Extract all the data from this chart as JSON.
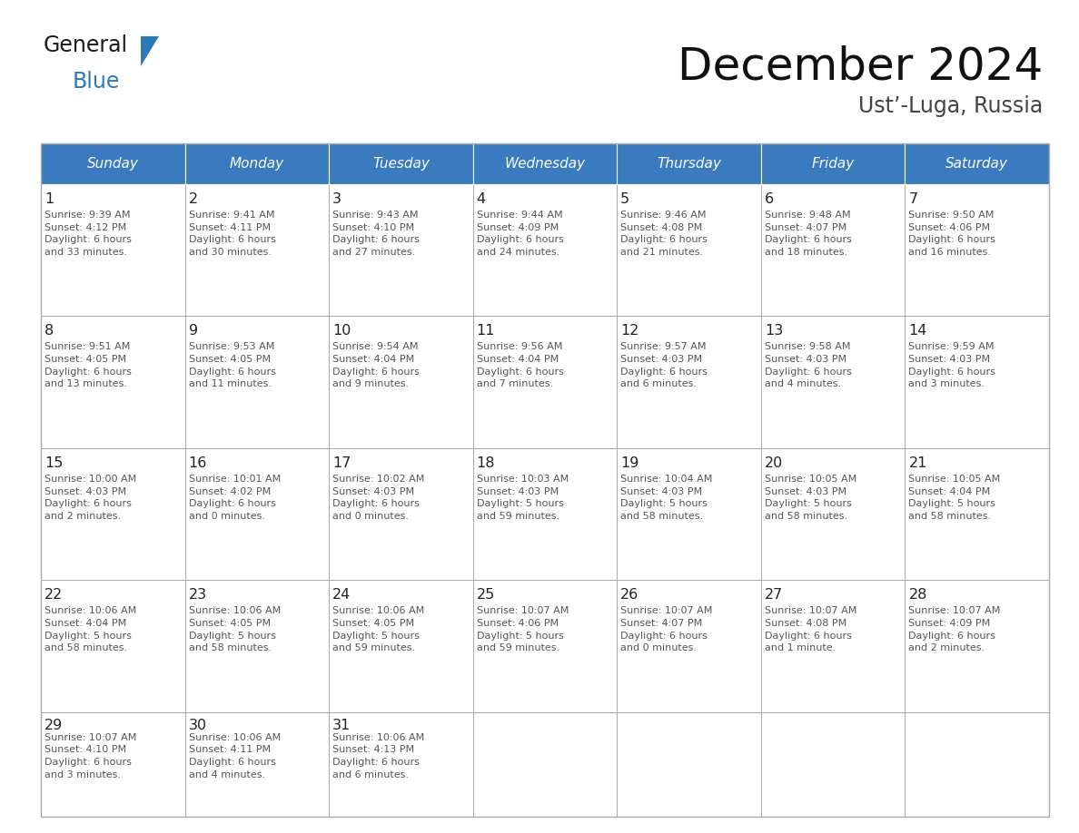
{
  "title": "December 2024",
  "subtitle": "Ust’-Luga, Russia",
  "header_color": "#3a7abf",
  "header_text_color": "#ffffff",
  "cell_bg_color": "#ffffff",
  "cell_border_color": "#aaaaaa",
  "day_num_color": "#222222",
  "content_text_color": "#555555",
  "days_of_week": [
    "Sunday",
    "Monday",
    "Tuesday",
    "Wednesday",
    "Thursday",
    "Friday",
    "Saturday"
  ],
  "weeks": [
    [
      {
        "day": 1,
        "sunrise": "9:39 AM",
        "sunset": "4:12 PM",
        "daylight": "6 hours\nand 33 minutes."
      },
      {
        "day": 2,
        "sunrise": "9:41 AM",
        "sunset": "4:11 PM",
        "daylight": "6 hours\nand 30 minutes."
      },
      {
        "day": 3,
        "sunrise": "9:43 AM",
        "sunset": "4:10 PM",
        "daylight": "6 hours\nand 27 minutes."
      },
      {
        "day": 4,
        "sunrise": "9:44 AM",
        "sunset": "4:09 PM",
        "daylight": "6 hours\nand 24 minutes."
      },
      {
        "day": 5,
        "sunrise": "9:46 AM",
        "sunset": "4:08 PM",
        "daylight": "6 hours\nand 21 minutes."
      },
      {
        "day": 6,
        "sunrise": "9:48 AM",
        "sunset": "4:07 PM",
        "daylight": "6 hours\nand 18 minutes."
      },
      {
        "day": 7,
        "sunrise": "9:50 AM",
        "sunset": "4:06 PM",
        "daylight": "6 hours\nand 16 minutes."
      }
    ],
    [
      {
        "day": 8,
        "sunrise": "9:51 AM",
        "sunset": "4:05 PM",
        "daylight": "6 hours\nand 13 minutes."
      },
      {
        "day": 9,
        "sunrise": "9:53 AM",
        "sunset": "4:05 PM",
        "daylight": "6 hours\nand 11 minutes."
      },
      {
        "day": 10,
        "sunrise": "9:54 AM",
        "sunset": "4:04 PM",
        "daylight": "6 hours\nand 9 minutes."
      },
      {
        "day": 11,
        "sunrise": "9:56 AM",
        "sunset": "4:04 PM",
        "daylight": "6 hours\nand 7 minutes."
      },
      {
        "day": 12,
        "sunrise": "9:57 AM",
        "sunset": "4:03 PM",
        "daylight": "6 hours\nand 6 minutes."
      },
      {
        "day": 13,
        "sunrise": "9:58 AM",
        "sunset": "4:03 PM",
        "daylight": "6 hours\nand 4 minutes."
      },
      {
        "day": 14,
        "sunrise": "9:59 AM",
        "sunset": "4:03 PM",
        "daylight": "6 hours\nand 3 minutes."
      }
    ],
    [
      {
        "day": 15,
        "sunrise": "10:00 AM",
        "sunset": "4:03 PM",
        "daylight": "6 hours\nand 2 minutes."
      },
      {
        "day": 16,
        "sunrise": "10:01 AM",
        "sunset": "4:02 PM",
        "daylight": "6 hours\nand 0 minutes."
      },
      {
        "day": 17,
        "sunrise": "10:02 AM",
        "sunset": "4:03 PM",
        "daylight": "6 hours\nand 0 minutes."
      },
      {
        "day": 18,
        "sunrise": "10:03 AM",
        "sunset": "4:03 PM",
        "daylight": "5 hours\nand 59 minutes."
      },
      {
        "day": 19,
        "sunrise": "10:04 AM",
        "sunset": "4:03 PM",
        "daylight": "5 hours\nand 58 minutes."
      },
      {
        "day": 20,
        "sunrise": "10:05 AM",
        "sunset": "4:03 PM",
        "daylight": "5 hours\nand 58 minutes."
      },
      {
        "day": 21,
        "sunrise": "10:05 AM",
        "sunset": "4:04 PM",
        "daylight": "5 hours\nand 58 minutes."
      }
    ],
    [
      {
        "day": 22,
        "sunrise": "10:06 AM",
        "sunset": "4:04 PM",
        "daylight": "5 hours\nand 58 minutes."
      },
      {
        "day": 23,
        "sunrise": "10:06 AM",
        "sunset": "4:05 PM",
        "daylight": "5 hours\nand 58 minutes."
      },
      {
        "day": 24,
        "sunrise": "10:06 AM",
        "sunset": "4:05 PM",
        "daylight": "5 hours\nand 59 minutes."
      },
      {
        "day": 25,
        "sunrise": "10:07 AM",
        "sunset": "4:06 PM",
        "daylight": "5 hours\nand 59 minutes."
      },
      {
        "day": 26,
        "sunrise": "10:07 AM",
        "sunset": "4:07 PM",
        "daylight": "6 hours\nand 0 minutes."
      },
      {
        "day": 27,
        "sunrise": "10:07 AM",
        "sunset": "4:08 PM",
        "daylight": "6 hours\nand 1 minute."
      },
      {
        "day": 28,
        "sunrise": "10:07 AM",
        "sunset": "4:09 PM",
        "daylight": "6 hours\nand 2 minutes."
      }
    ],
    [
      {
        "day": 29,
        "sunrise": "10:07 AM",
        "sunset": "4:10 PM",
        "daylight": "6 hours\nand 3 minutes."
      },
      {
        "day": 30,
        "sunrise": "10:06 AM",
        "sunset": "4:11 PM",
        "daylight": "6 hours\nand 4 minutes."
      },
      {
        "day": 31,
        "sunrise": "10:06 AM",
        "sunset": "4:13 PM",
        "daylight": "6 hours\nand 6 minutes."
      },
      null,
      null,
      null,
      null
    ]
  ],
  "logo_general_color": "#1a1a1a",
  "logo_blue_color": "#2b7bb9",
  "fig_width": 11.88,
  "fig_height": 9.18
}
